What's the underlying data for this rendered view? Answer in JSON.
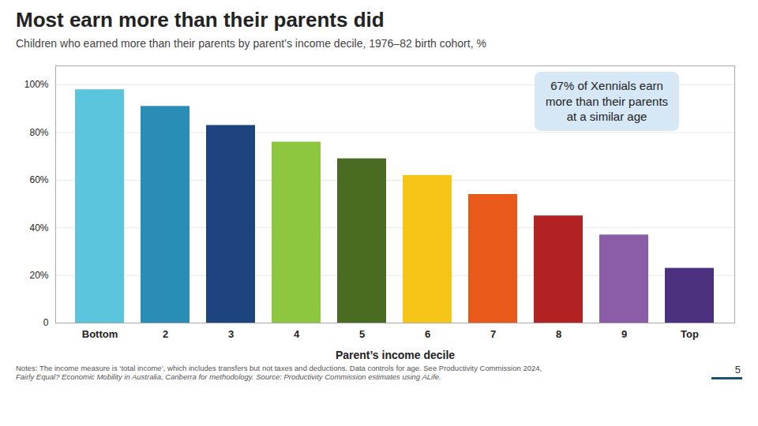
{
  "chart_data": {
    "type": "bar",
    "title": "Most earn more than their parents did",
    "subtitle": "Children who earned more than their parents by parent’s income decile, 1976–82 birth cohort, %",
    "categories": [
      "Bottom",
      "2",
      "3",
      "4",
      "5",
      "6",
      "7",
      "8",
      "9",
      "Top"
    ],
    "values": [
      0.98,
      0.91,
      0.83,
      0.76,
      0.69,
      0.62,
      0.54,
      0.45,
      0.37,
      0.23
    ],
    "colors": [
      "#5BC5DE",
      "#2A8DB5",
      "#1E4480",
      "#8DC63F",
      "#4A6B22",
      "#F5C518",
      "#E8591A",
      "#B22222",
      "#8B5CA8",
      "#4B3080"
    ],
    "xlabel": "Parent’s income decile",
    "ylim": [
      0,
      1.08
    ],
    "yticks": [
      0,
      {
        "value": 0.2,
        "label": "20%"
      },
      {
        "value": 0.4,
        "label": "40%"
      },
      {
        "value": 0.6,
        "label": "60%"
      },
      {
        "value": 0.8,
        "label": "80%"
      },
      {
        "value": 1.0,
        "label": "100%"
      }
    ],
    "grid": true,
    "annotation": "67% of Xennials earn\nmore than their parents\nat a similar age",
    "notes": [
      "Notes: The income measure is ‘total income’, which includes transfers but not taxes and deductions. Data controls for age. See Productivity Commission 2024,",
      "Fairly Equal? Economic Mobility in Australia, Canberra for methodology.  Source: Productivity Commission estimates using ALife."
    ],
    "page_number": "5"
  }
}
